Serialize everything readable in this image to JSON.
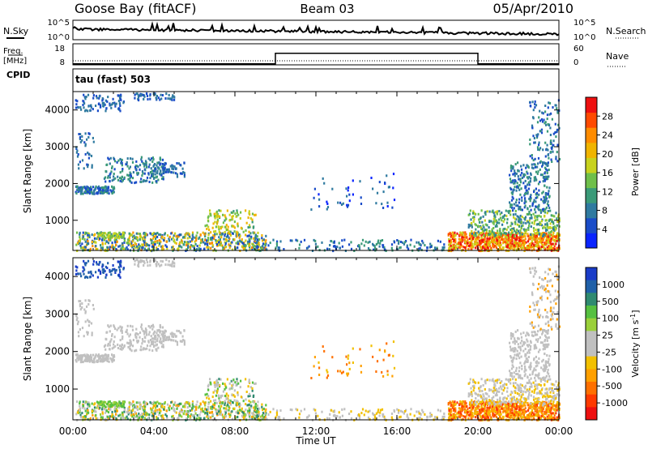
{
  "header": {
    "station": "Goose Bay (fitACF)",
    "beam": "Beam 03",
    "date": "05/Apr/2010"
  },
  "panels": {
    "nsky_label": "N.Sky",
    "nsearch_label": "N.Search",
    "freq_label_1": "Freq.",
    "freq_label_2": "[MHz]",
    "nave_label": "Nave",
    "cpid_label": "CPID",
    "cpid_value": "tau (fast) 503"
  },
  "chart_data": [
    {
      "type": "line",
      "name": "nsky_nsearch",
      "ylabel": "N.Sky",
      "y2label": "N.Search",
      "ytick_labels": [
        "10^5",
        "10^0"
      ],
      "y2tick_labels": [
        "10^5",
        "10^0"
      ]
    },
    {
      "type": "line",
      "name": "freq_nave",
      "ylabel": "Freq. [MHz]",
      "y2label": "Nave",
      "yticks": [
        18,
        8
      ],
      "y2ticks": [
        60,
        0
      ],
      "series": [
        {
          "name": "Freq.",
          "x": [
            0,
            10,
            10,
            20,
            20,
            24
          ],
          "y": [
            10,
            10,
            15,
            15,
            10,
            10
          ]
        }
      ]
    },
    {
      "type": "heatmap",
      "name": "power",
      "xlabel": "Time UT",
      "ylabel": "Slant Range [km]",
      "xlim": [
        0,
        24
      ],
      "ylim": [
        180,
        4500
      ],
      "xticks": [
        "00:00",
        "04:00",
        "08:00",
        "12:00",
        "16:00",
        "20:00",
        "00:00"
      ],
      "yticks": [
        1000,
        2000,
        3000,
        4000
      ],
      "colorbar": {
        "label": "Power [dB]",
        "ticks": [
          "4",
          "8",
          "12",
          "16",
          "20",
          "24",
          "28"
        ],
        "colors": [
          "#0a24ff",
          "#1a4cc8",
          "#2f7aa0",
          "#3a9a78",
          "#6fbf4a",
          "#c8d21e",
          "#f0b400",
          "#ff8c00",
          "#ff4a00",
          "#ee1010"
        ]
      }
    },
    {
      "type": "heatmap",
      "name": "velocity",
      "xlabel": "Time UT",
      "ylabel": "Slant Range [km]",
      "xlim": [
        0,
        24
      ],
      "ylim": [
        180,
        4500
      ],
      "xticks": [
        "00:00",
        "04:00",
        "08:00",
        "12:00",
        "16:00",
        "20:00",
        "00:00"
      ],
      "yticks": [
        1000,
        2000,
        3000,
        4000
      ],
      "colorbar": {
        "label": "Velocity [m s^-1]",
        "ticks": [
          "1000",
          "500",
          "100",
          "25",
          "-25",
          "-100",
          "-500",
          "-1000"
        ],
        "colors": [
          "#1a3cc8",
          "#2060a8",
          "#2f8a70",
          "#56c040",
          "#9ad03a",
          "#c0c0c0",
          "#c0c0c0",
          "#f2c000",
          "#ffa000",
          "#ff7000",
          "#ff3a00",
          "#ee1010"
        ]
      }
    }
  ]
}
